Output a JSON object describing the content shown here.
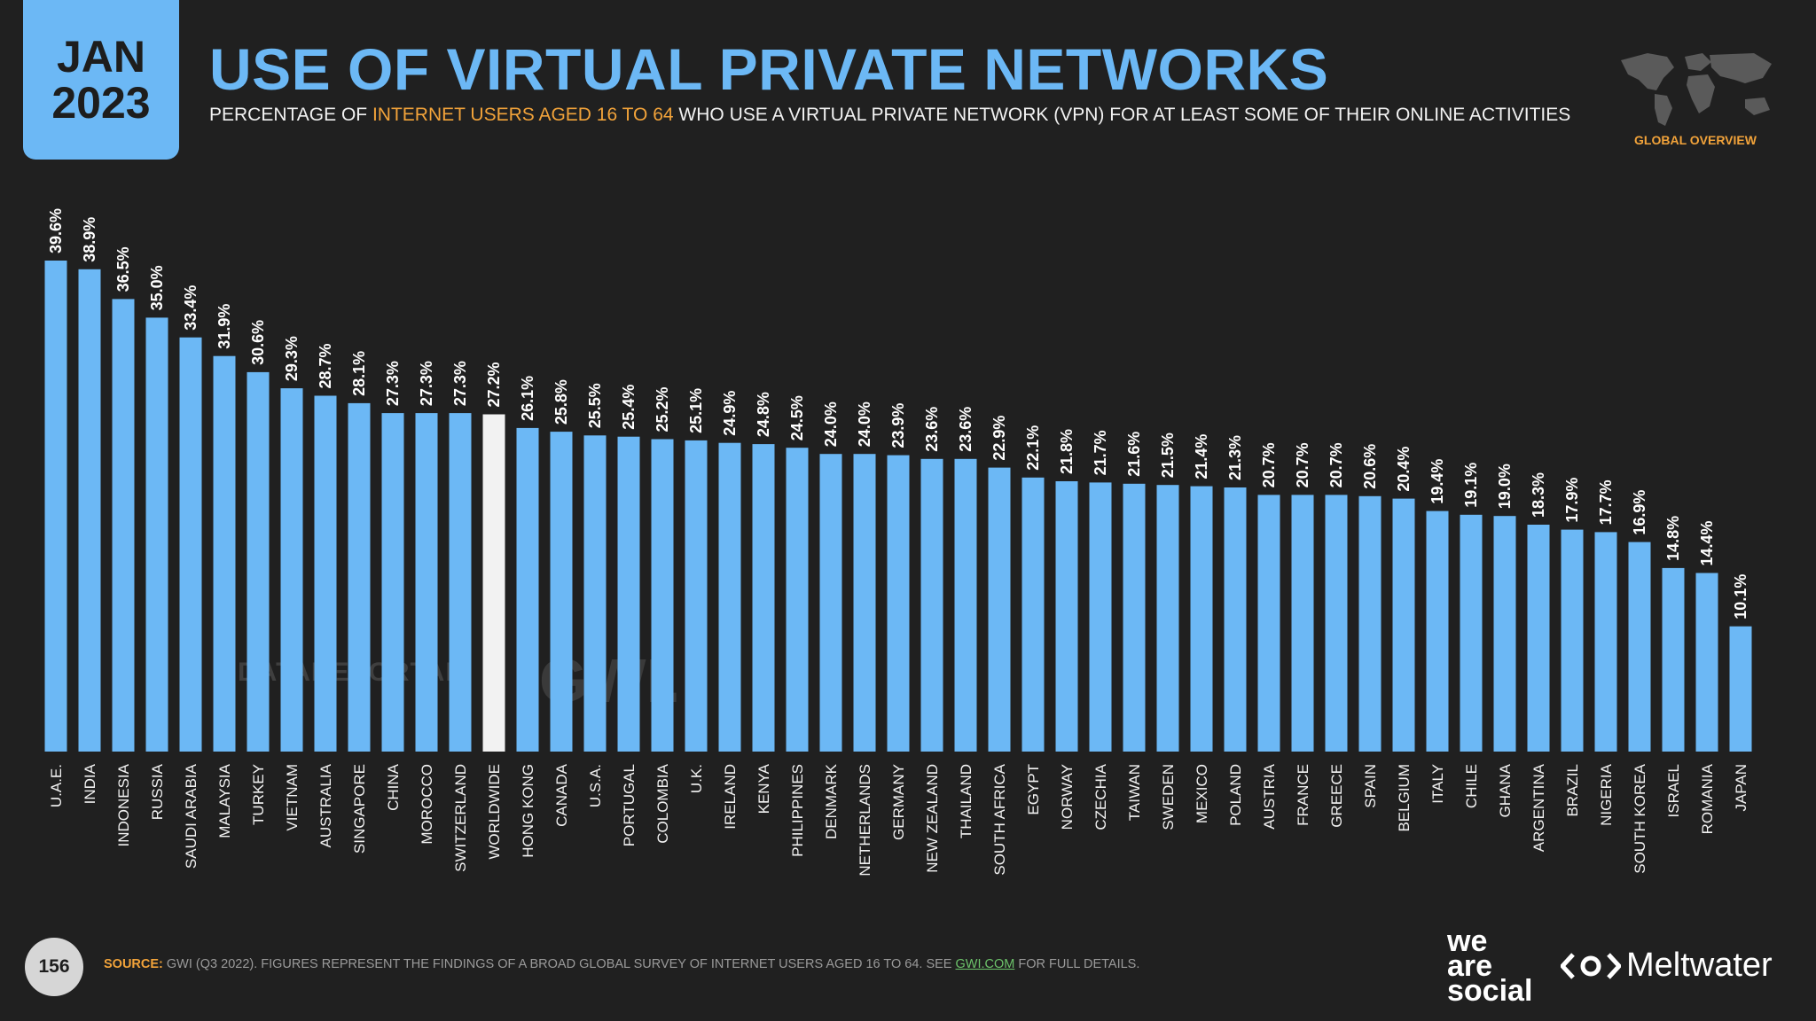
{
  "header": {
    "month": "JAN",
    "year": "2023",
    "title": "USE OF VIRTUAL PRIVATE NETWORKS",
    "subtitle_pre": "PERCENTAGE OF ",
    "subtitle_highlight": "INTERNET USERS AGED 16 TO 64",
    "subtitle_post": " WHO USE A VIRTUAL PRIVATE NETWORK (VPN) FOR AT LEAST SOME OF THEIR ONLINE ACTIVITIES",
    "section": "GLOBAL OVERVIEW"
  },
  "watermarks": {
    "datareportal": "DATAREPORTAL",
    "gwi": "GWI."
  },
  "footer": {
    "page_number": "156",
    "source_label": "SOURCE:",
    "source_text": " GWI (Q3 2022). FIGURES REPRESENT THE FINDINGS OF A BROAD GLOBAL SURVEY OF INTERNET USERS AGED 16 TO 64. SEE ",
    "source_link": "GWI.COM",
    "source_end": " FOR FULL DETAILS.",
    "brand1_line1": "we",
    "brand1_line2": "are",
    "brand1_line3": "social",
    "brand2": "Meltwater"
  },
  "colors": {
    "bar": "#6cb8f5",
    "highlight_bar": "#f2f2f2",
    "accent": "#f2a33a",
    "background": "#202020"
  },
  "chart_data": {
    "type": "bar",
    "title": "USE OF VIRTUAL PRIVATE NETWORKS",
    "ylabel": "Percentage of internet users aged 16 to 64",
    "ylim": [
      0,
      40
    ],
    "highlight": "WORLDWIDE",
    "categories": [
      "U.A.E.",
      "INDIA",
      "INDONESIA",
      "RUSSIA",
      "SAUDI ARABIA",
      "MALAYSIA",
      "TURKEY",
      "VIETNAM",
      "AUSTRALIA",
      "SINGAPORE",
      "CHINA",
      "MOROCCO",
      "SWITZERLAND",
      "WORLDWIDE",
      "HONG KONG",
      "CANADA",
      "U.S.A.",
      "PORTUGAL",
      "COLOMBIA",
      "U.K.",
      "IRELAND",
      "KENYA",
      "PHILIPPINES",
      "DENMARK",
      "NETHERLANDS",
      "GERMANY",
      "NEW ZEALAND",
      "THAILAND",
      "SOUTH AFRICA",
      "EGYPT",
      "NORWAY",
      "CZECHIA",
      "TAIWAN",
      "SWEDEN",
      "MEXICO",
      "POLAND",
      "AUSTRIA",
      "FRANCE",
      "GREECE",
      "SPAIN",
      "BELGIUM",
      "ITALY",
      "CHILE",
      "GHANA",
      "ARGENTINA",
      "BRAZIL",
      "NIGERIA",
      "SOUTH KOREA",
      "ISRAEL",
      "ROMANIA",
      "JAPAN"
    ],
    "values": [
      39.6,
      38.9,
      36.5,
      35.0,
      33.4,
      31.9,
      30.6,
      29.3,
      28.7,
      28.1,
      27.3,
      27.3,
      27.3,
      27.2,
      26.1,
      25.8,
      25.5,
      25.4,
      25.2,
      25.1,
      24.9,
      24.8,
      24.5,
      24.0,
      24.0,
      23.9,
      23.6,
      23.6,
      22.9,
      22.1,
      21.8,
      21.7,
      21.6,
      21.5,
      21.4,
      21.3,
      20.7,
      20.7,
      20.7,
      20.6,
      20.4,
      19.4,
      19.1,
      19.0,
      18.3,
      17.9,
      17.7,
      16.9,
      14.8,
      14.4,
      10.1
    ],
    "value_labels": [
      "39.6%",
      "38.9%",
      "36.5%",
      "35.0%",
      "33.4%",
      "31.9%",
      "30.6%",
      "29.3%",
      "28.7%",
      "28.1%",
      "27.3%",
      "27.3%",
      "27.3%",
      "27.2%",
      "26.1%",
      "25.8%",
      "25.5%",
      "25.4%",
      "25.2%",
      "25.1%",
      "24.9%",
      "24.8%",
      "24.5%",
      "24.0%",
      "24.0%",
      "23.9%",
      "23.6%",
      "23.6%",
      "22.9%",
      "22.1%",
      "21.8%",
      "21.7%",
      "21.6%",
      "21.5%",
      "21.4%",
      "21.3%",
      "20.7%",
      "20.7%",
      "20.7%",
      "20.6%",
      "20.4%",
      "19.4%",
      "19.1%",
      "19.0%",
      "18.3%",
      "17.9%",
      "17.7%",
      "16.9%",
      "14.8%",
      "14.4%",
      "10.1%"
    ]
  }
}
